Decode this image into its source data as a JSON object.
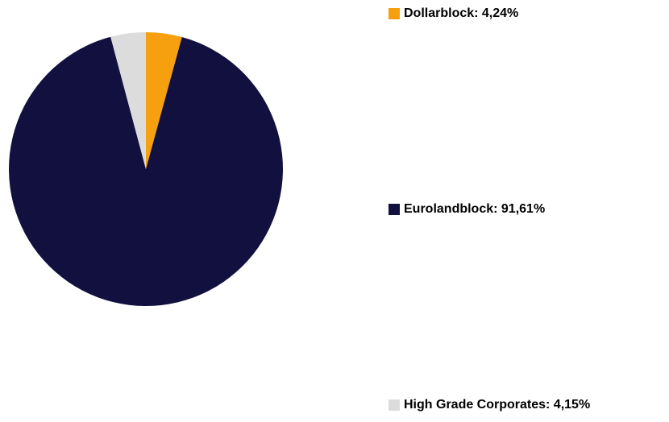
{
  "chart_data": {
    "type": "pie",
    "categories": [
      "Dollarblock: 4,24%",
      "Eurolandblock: 91,61%",
      "High Grade Corporates: 4,15%"
    ],
    "values": [
      4.24,
      91.61,
      4.15
    ],
    "colors": [
      "#f7a00f",
      "#12103f",
      "#dcdcdc"
    ]
  }
}
